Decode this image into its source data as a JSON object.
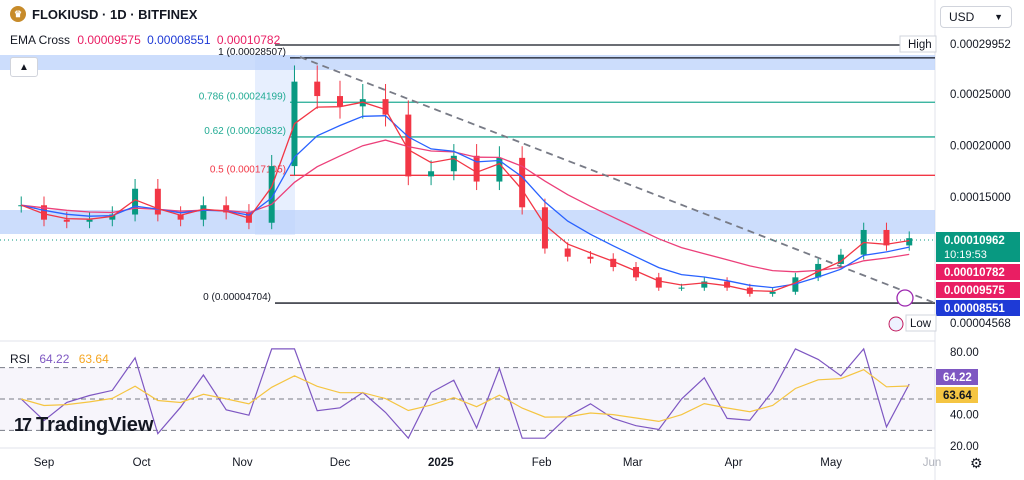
{
  "header": {
    "symbol": "FLOKIUSD · 1D · BITFINEX",
    "indicator_label": "EMA Cross",
    "ema_values": [
      "0.00009575",
      "0.00008551",
      "0.00010782"
    ],
    "currency": "USD",
    "currency_icon": "chevron-down-icon",
    "collapse_icon": "chevron-up-icon"
  },
  "rsi": {
    "label": "RSI",
    "value": "64.22",
    "ma_value": "63.64"
  },
  "branding": {
    "logo_text": "TradingView",
    "logo_mark": "17"
  },
  "colors": {
    "up": "#089981",
    "down": "#f23645",
    "ema_fast": "#f23645",
    "ema_slow": "#2962ff",
    "ema_long": "#ec407a",
    "fib_teal": "#22ab94",
    "rsi": "#7e57c2",
    "rsi_ma": "#f5c542",
    "zone": "#bbd2fb"
  },
  "chart_data": {
    "type": "candlestick",
    "title": "FLOKIUSD · 1D · BITFINEX",
    "y_axis": {
      "scale": "linear",
      "ticks": [
        "0.00029952",
        "0.00025000",
        "0.00020000",
        "0.00015000",
        "0.00010962",
        "0.00004568"
      ]
    },
    "x_axis": {
      "ticks": [
        "Sep",
        "Oct",
        "Nov",
        "Dec",
        "2025",
        "Feb",
        "Mar",
        "Apr",
        "May",
        "Jun"
      ]
    },
    "current_price": "0.00010962",
    "countdown": "10:19:53",
    "high": {
      "label": "High",
      "value": "0.00029952"
    },
    "low": {
      "label": "Low",
      "value": "0.00004568"
    },
    "ema_tags": [
      "0.00010782",
      "0.00009575",
      "0.00008551"
    ],
    "fibonacci": [
      {
        "ratio": "1",
        "label": "1 (0.00028507)",
        "price": 0.00028507
      },
      {
        "ratio": "0.786",
        "label": "0.786 (0.00024199)",
        "price": 0.00024199
      },
      {
        "ratio": "0.62",
        "label": "0.62 (0.00020832)",
        "price": 0.00020832
      },
      {
        "ratio": "0.5",
        "label": "0.5 (0.00017105)",
        "price": 0.00017105
      },
      {
        "ratio": "0",
        "label": "0 (0.00004704)",
        "price": 4.704e-05
      }
    ],
    "close_series": [
      {
        "d": "2024-08-25",
        "c": 0.000142
      },
      {
        "d": "2024-09-01",
        "c": 0.000128
      },
      {
        "d": "2024-09-08",
        "c": 0.000126
      },
      {
        "d": "2024-09-15",
        "c": 0.000128
      },
      {
        "d": "2024-09-22",
        "c": 0.000133
      },
      {
        "d": "2024-09-29",
        "c": 0.000158
      },
      {
        "d": "2024-10-06",
        "c": 0.000133
      },
      {
        "d": "2024-10-13",
        "c": 0.000128
      },
      {
        "d": "2024-10-20",
        "c": 0.000142
      },
      {
        "d": "2024-10-27",
        "c": 0.000135
      },
      {
        "d": "2024-11-03",
        "c": 0.000125
      },
      {
        "d": "2024-11-10",
        "c": 0.00018
      },
      {
        "d": "2024-11-17",
        "c": 0.000262
      },
      {
        "d": "2024-11-24",
        "c": 0.000248
      },
      {
        "d": "2024-12-01",
        "c": 0.000238
      },
      {
        "d": "2024-12-08",
        "c": 0.000245
      },
      {
        "d": "2024-12-15",
        "c": 0.00023
      },
      {
        "d": "2024-12-22",
        "c": 0.00017
      },
      {
        "d": "2024-12-29",
        "c": 0.000175
      },
      {
        "d": "2025-01-05",
        "c": 0.00019
      },
      {
        "d": "2025-01-12",
        "c": 0.000165
      },
      {
        "d": "2025-01-19",
        "c": 0.000188
      },
      {
        "d": "2025-01-26",
        "c": 0.00014
      },
      {
        "d": "2025-02-02",
        "c": 0.0001
      },
      {
        "d": "2025-02-09",
        "c": 9.2e-05
      },
      {
        "d": "2025-02-16",
        "c": 9e-05
      },
      {
        "d": "2025-02-23",
        "c": 8.2e-05
      },
      {
        "d": "2025-03-02",
        "c": 7.2e-05
      },
      {
        "d": "2025-03-09",
        "c": 6.2e-05
      },
      {
        "d": "2025-03-16",
        "c": 6.2e-05
      },
      {
        "d": "2025-03-23",
        "c": 6.8e-05
      },
      {
        "d": "2025-03-30",
        "c": 6.2e-05
      },
      {
        "d": "2025-04-06",
        "c": 5.6e-05
      },
      {
        "d": "2025-04-13",
        "c": 5.8e-05
      },
      {
        "d": "2025-04-20",
        "c": 7.2e-05
      },
      {
        "d": "2025-04-27",
        "c": 8.5e-05
      },
      {
        "d": "2025-05-04",
        "c": 9.4e-05
      },
      {
        "d": "2025-05-11",
        "c": 0.000118
      },
      {
        "d": "2025-05-18",
        "c": 0.000103
      },
      {
        "d": "2025-05-25",
        "c": 0.00011
      }
    ],
    "rsi_axis": {
      "ticks": [
        "80.00",
        "40.00",
        "20.00"
      ],
      "bands": [
        70,
        30
      ]
    }
  }
}
